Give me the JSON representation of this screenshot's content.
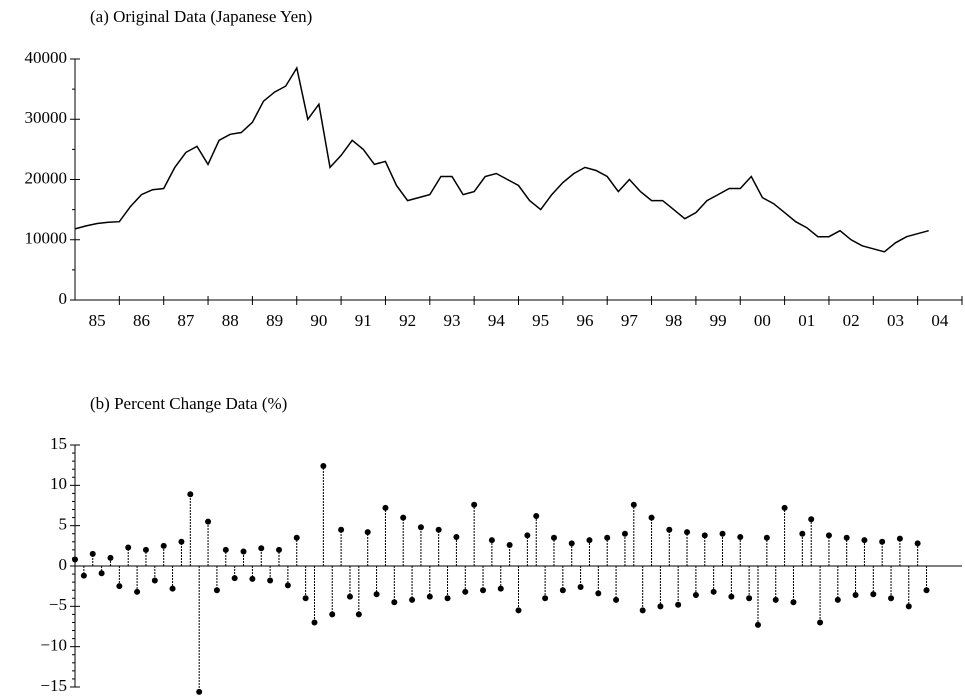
{
  "chart_data": [
    {
      "type": "line",
      "title": "(a) Original Data (Japanese Yen)",
      "color": "#000000",
      "x": [
        1985,
        1985.25,
        1985.5,
        1985.75,
        1986,
        1986.25,
        1986.5,
        1986.75,
        1987,
        1987.25,
        1987.5,
        1987.75,
        1988,
        1988.25,
        1988.5,
        1988.75,
        1989,
        1989.25,
        1989.5,
        1989.75,
        1990,
        1990.25,
        1990.5,
        1990.75,
        1991,
        1991.25,
        1991.5,
        1991.75,
        1992,
        1992.25,
        1992.5,
        1992.75,
        1993,
        1993.25,
        1993.5,
        1993.75,
        1994,
        1994.25,
        1994.5,
        1994.75,
        1995,
        1995.25,
        1995.5,
        1995.75,
        1996,
        1996.25,
        1996.5,
        1996.75,
        1997,
        1997.25,
        1997.5,
        1997.75,
        1998,
        1998.25,
        1998.5,
        1998.75,
        1999,
        1999.25,
        1999.5,
        1999.75,
        2000,
        2000.25,
        2000.5,
        2000.75,
        2001,
        2001.25,
        2001.5,
        2001.75,
        2002,
        2002.25,
        2002.5,
        2002.75,
        2003,
        2003.25,
        2003.5,
        2003.75,
        2004,
        2004.25
      ],
      "values": [
        11800,
        12300,
        12700,
        12900,
        13000,
        15500,
        17500,
        18300,
        18500,
        22000,
        24500,
        25500,
        22500,
        26500,
        27500,
        27800,
        29500,
        33000,
        34500,
        35500,
        38500,
        30000,
        32500,
        22000,
        24000,
        26500,
        25000,
        22500,
        23000,
        19000,
        16500,
        17000,
        17500,
        20500,
        20500,
        17500,
        18000,
        20500,
        21000,
        20000,
        19000,
        16500,
        15000,
        17500,
        19500,
        21000,
        22000,
        21500,
        20500,
        18000,
        20000,
        18000,
        16500,
        16500,
        15000,
        13500,
        14500,
        16500,
        17500,
        18500,
        18500,
        20500,
        17000,
        16000,
        14500,
        13000,
        12000,
        10500,
        10500,
        11500,
        10000,
        9000,
        8500,
        8000,
        9500,
        10500,
        11000,
        11500
      ],
      "xlim": [
        1985,
        2005
      ],
      "xticks": [
        {
          "value": 1985.5,
          "label": "85"
        },
        {
          "value": 1986.5,
          "label": "86"
        },
        {
          "value": 1987.5,
          "label": "87"
        },
        {
          "value": 1988.5,
          "label": "88"
        },
        {
          "value": 1989.5,
          "label": "89"
        },
        {
          "value": 1990.5,
          "label": "90"
        },
        {
          "value": 1991.5,
          "label": "91"
        },
        {
          "value": 1992.5,
          "label": "92"
        },
        {
          "value": 1993.5,
          "label": "93"
        },
        {
          "value": 1994.5,
          "label": "94"
        },
        {
          "value": 1995.5,
          "label": "95"
        },
        {
          "value": 1996.5,
          "label": "96"
        },
        {
          "value": 1997.5,
          "label": "97"
        },
        {
          "value": 1998.5,
          "label": "98"
        },
        {
          "value": 1999.5,
          "label": "99"
        },
        {
          "value": 2000.5,
          "label": "00"
        },
        {
          "value": 2001.5,
          "label": "01"
        },
        {
          "value": 2002.5,
          "label": "02"
        },
        {
          "value": 2003.5,
          "label": "03"
        },
        {
          "value": 2004.5,
          "label": "04"
        }
      ],
      "xminorticks": [
        1986,
        1987,
        1988,
        1989,
        1990,
        1991,
        1992,
        1993,
        1994,
        1995,
        1996,
        1997,
        1998,
        1999,
        2000,
        2001,
        2002,
        2003,
        2004,
        2005
      ],
      "ylim": [
        0,
        40000
      ],
      "yticks": [
        0,
        10000,
        20000,
        30000,
        40000
      ],
      "yminorticks": [
        5000,
        15000,
        25000,
        35000
      ]
    },
    {
      "type": "stem",
      "title": "(b) Percent Change Data (%)",
      "color": "#000000",
      "x": [
        1985,
        1985.2,
        1985.4,
        1985.6,
        1985.8,
        1986,
        1986.2,
        1986.4,
        1986.6,
        1986.8,
        1987,
        1987.2,
        1987.4,
        1987.6,
        1987.8,
        1988,
        1988.2,
        1988.4,
        1988.6,
        1988.8,
        1989,
        1989.2,
        1989.4,
        1989.6,
        1989.8,
        1990,
        1990.2,
        1990.4,
        1990.6,
        1990.8,
        1991,
        1991.2,
        1991.4,
        1991.6,
        1991.8,
        1992,
        1992.2,
        1992.4,
        1992.6,
        1992.8,
        1993,
        1993.2,
        1993.4,
        1993.6,
        1993.8,
        1994,
        1994.2,
        1994.4,
        1994.6,
        1994.8,
        1995,
        1995.2,
        1995.4,
        1995.6,
        1995.8,
        1996,
        1996.2,
        1996.4,
        1996.6,
        1996.8,
        1997,
        1997.2,
        1997.4,
        1997.6,
        1997.8,
        1998,
        1998.2,
        1998.4,
        1998.6,
        1998.8,
        1999,
        1999.2,
        1999.4,
        1999.6,
        1999.8,
        2000,
        2000.2,
        2000.4,
        2000.6,
        2000.8,
        2001,
        2001.2,
        2001.4,
        2001.6,
        2001.8,
        2002,
        2002.2,
        2002.4,
        2002.6,
        2002.8,
        2003,
        2003.2,
        2003.4,
        2003.6,
        2003.8,
        2004,
        2004.2
      ],
      "values": [
        0.8,
        -1.2,
        1.5,
        -0.9,
        1.0,
        -2.5,
        2.3,
        -3.2,
        2.0,
        -1.8,
        2.5,
        -2.8,
        3.0,
        8.9,
        -15.6,
        5.5,
        -3.0,
        2.0,
        -1.5,
        1.8,
        -1.6,
        2.2,
        -1.8,
        2.0,
        -2.4,
        3.5,
        -4.0,
        -7.0,
        12.4,
        -6.0,
        4.5,
        -3.8,
        -6.0,
        4.2,
        -3.5,
        7.2,
        -4.5,
        6.0,
        -4.2,
        4.8,
        -3.8,
        4.5,
        -4.0,
        3.6,
        -3.2,
        7.6,
        -3.0,
        3.2,
        -2.8,
        2.6,
        -5.5,
        3.8,
        6.2,
        -4.0,
        3.5,
        -3.0,
        2.8,
        -2.6,
        3.2,
        -3.4,
        3.5,
        -4.2,
        4.0,
        7.6,
        -5.5,
        6.0,
        -5.0,
        4.5,
        -4.8,
        4.2,
        -3.6,
        3.8,
        -3.2,
        4.0,
        -3.8,
        3.6,
        -4.0,
        -7.3,
        3.5,
        -4.2,
        7.2,
        -4.5,
        4.0,
        5.8,
        -7.0,
        3.8,
        -4.2,
        3.5,
        -3.6,
        3.2,
        -3.5,
        3.0,
        -4.0,
        3.4,
        -5.0,
        2.8,
        -3.0
      ],
      "xlim": [
        1985,
        2005
      ],
      "ylim": [
        -15,
        15
      ],
      "yticks": [
        {
          "value": -15,
          "label": "−15"
        },
        {
          "value": -10,
          "label": "−10"
        },
        {
          "value": -5,
          "label": "−5"
        },
        0,
        5,
        10,
        15
      ],
      "yminorticks": [
        -14,
        -13,
        -12,
        -11,
        -9,
        -8,
        -7,
        -6,
        -4,
        -3,
        -2,
        -1,
        1,
        2,
        3,
        4,
        6,
        7,
        8,
        9,
        11,
        12,
        13,
        14
      ]
    }
  ]
}
